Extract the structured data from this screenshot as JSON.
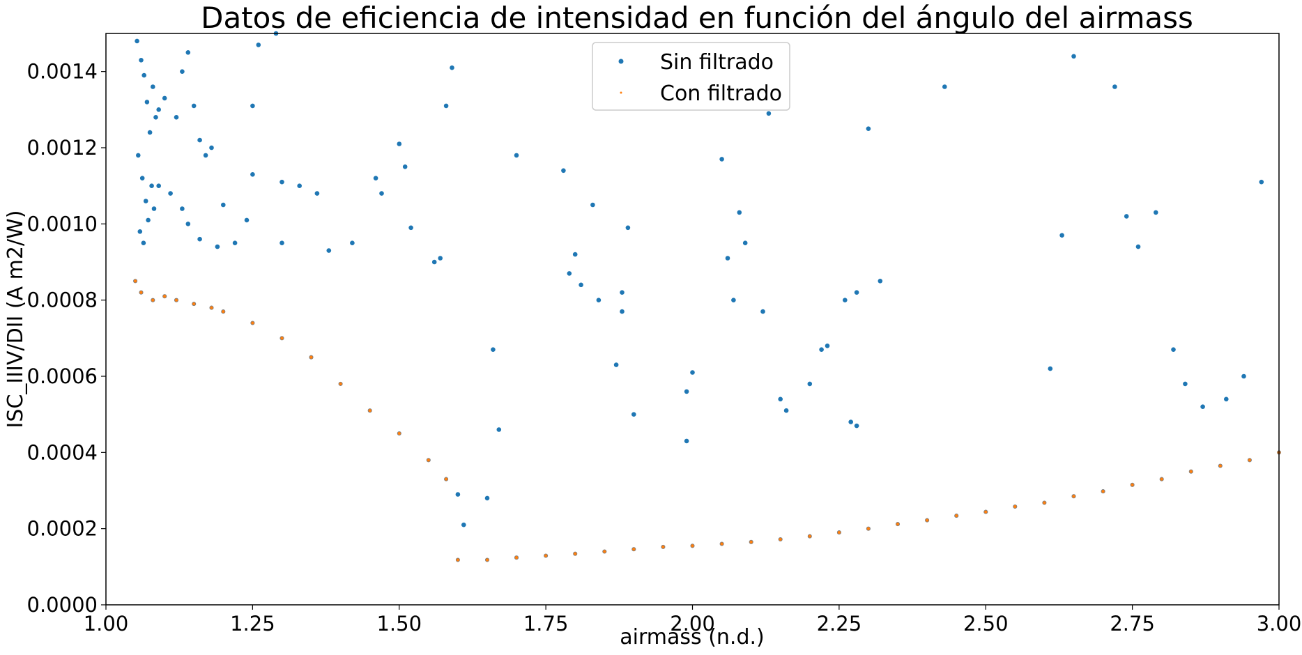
{
  "chart_data": {
    "type": "scatter",
    "title": "Datos de eficiencia de intensidad en función del ángulo del airmass",
    "xlabel": "airmass (n.d.)",
    "ylabel": "ISC_IIIV/DII (A m2/W)",
    "xlim": [
      1.0,
      3.0
    ],
    "ylim": [
      0.0,
      0.0015
    ],
    "xticks": [
      1.0,
      1.25,
      1.5,
      1.75,
      2.0,
      2.25,
      2.5,
      2.75,
      3.0
    ],
    "xtick_labels": [
      "1.00",
      "1.25",
      "1.50",
      "1.75",
      "2.00",
      "2.25",
      "2.50",
      "2.75",
      "3.00"
    ],
    "yticks": [
      0.0,
      0.0002,
      0.0004,
      0.0006,
      0.0008,
      0.001,
      0.0012,
      0.0014
    ],
    "ytick_labels": [
      "0.0000",
      "0.0002",
      "0.0004",
      "0.0006",
      "0.0008",
      "0.0010",
      "0.0012",
      "0.0014"
    ],
    "grid": false,
    "legend_position": "top-center",
    "series": [
      {
        "name": "Sin filtrado",
        "color": "#1f77b4",
        "points": [
          [
            1.053,
            0.00148
          ],
          [
            1.06,
            0.00143
          ],
          [
            1.065,
            0.00139
          ],
          [
            1.07,
            0.00132
          ],
          [
            1.075,
            0.00124
          ],
          [
            1.08,
            0.00136
          ],
          [
            1.085,
            0.00128
          ],
          [
            1.09,
            0.0013
          ],
          [
            1.1,
            0.00133
          ],
          [
            1.055,
            0.00118
          ],
          [
            1.062,
            0.00112
          ],
          [
            1.068,
            0.00106
          ],
          [
            1.072,
            0.00101
          ],
          [
            1.058,
            0.00098
          ],
          [
            1.064,
            0.00095
          ],
          [
            1.078,
            0.0011
          ],
          [
            1.082,
            0.00104
          ],
          [
            1.09,
            0.0011
          ],
          [
            1.12,
            0.00128
          ],
          [
            1.13,
            0.0014
          ],
          [
            1.14,
            0.00145
          ],
          [
            1.15,
            0.00131
          ],
          [
            1.16,
            0.00122
          ],
          [
            1.17,
            0.00118
          ],
          [
            1.18,
            0.0012
          ],
          [
            1.11,
            0.00108
          ],
          [
            1.13,
            0.00104
          ],
          [
            1.14,
            0.001
          ],
          [
            1.16,
            0.00096
          ],
          [
            1.19,
            0.00094
          ],
          [
            1.2,
            0.00105
          ],
          [
            1.22,
            0.00095
          ],
          [
            1.24,
            0.00101
          ],
          [
            1.25,
            0.00113
          ],
          [
            1.25,
            0.00131
          ],
          [
            1.26,
            0.00147
          ],
          [
            1.29,
            0.0015
          ],
          [
            1.3,
            0.00111
          ],
          [
            1.3,
            0.00095
          ],
          [
            1.33,
            0.0011
          ],
          [
            1.36,
            0.00108
          ],
          [
            1.38,
            0.00093
          ],
          [
            1.42,
            0.00095
          ],
          [
            1.46,
            0.00112
          ],
          [
            1.47,
            0.00108
          ],
          [
            1.5,
            0.00121
          ],
          [
            1.51,
            0.00115
          ],
          [
            1.52,
            0.00099
          ],
          [
            1.58,
            0.00131
          ],
          [
            1.59,
            0.00141
          ],
          [
            1.56,
            0.0009
          ],
          [
            1.57,
            0.00091
          ],
          [
            1.7,
            0.00118
          ],
          [
            1.78,
            0.00114
          ],
          [
            1.79,
            0.00087
          ],
          [
            1.8,
            0.00092
          ],
          [
            1.81,
            0.00084
          ],
          [
            1.83,
            0.00105
          ],
          [
            1.84,
            0.0008
          ],
          [
            1.88,
            0.00082
          ],
          [
            1.88,
            0.00077
          ],
          [
            1.89,
            0.00099
          ],
          [
            1.87,
            0.00063
          ],
          [
            1.9,
            0.0005
          ],
          [
            2.05,
            0.00117
          ],
          [
            2.06,
            0.00091
          ],
          [
            2.07,
            0.0008
          ],
          [
            2.08,
            0.00103
          ],
          [
            2.09,
            0.00095
          ],
          [
            2.12,
            0.00077
          ],
          [
            2.13,
            0.00129
          ],
          [
            2.15,
            0.00054
          ],
          [
            2.16,
            0.00051
          ],
          [
            2.2,
            0.00058
          ],
          [
            2.22,
            0.00067
          ],
          [
            2.23,
            0.00068
          ],
          [
            2.26,
            0.0008
          ],
          [
            2.28,
            0.00082
          ],
          [
            2.3,
            0.00125
          ],
          [
            2.32,
            0.00085
          ],
          [
            2.27,
            0.00048
          ],
          [
            2.28,
            0.00047
          ],
          [
            2.43,
            0.00136
          ],
          [
            2.61,
            0.00062
          ],
          [
            2.63,
            0.00097
          ],
          [
            2.65,
            0.00144
          ],
          [
            2.72,
            0.00136
          ],
          [
            2.74,
            0.00102
          ],
          [
            2.76,
            0.00094
          ],
          [
            2.79,
            0.00103
          ],
          [
            2.82,
            0.00067
          ],
          [
            2.84,
            0.00058
          ],
          [
            2.87,
            0.00052
          ],
          [
            2.91,
            0.00054
          ],
          [
            2.94,
            0.0006
          ],
          [
            2.97,
            0.00111
          ],
          [
            1.99,
            0.00056
          ],
          [
            2.0,
            0.00061
          ],
          [
            1.99,
            0.00043
          ],
          [
            1.66,
            0.00067
          ],
          [
            1.67,
            0.00046
          ],
          [
            1.65,
            0.00028
          ],
          [
            1.6,
            0.00029
          ],
          [
            1.61,
            0.00021
          ]
        ]
      },
      {
        "name": "Con filtrado",
        "color": "#ff7f0e",
        "points": [
          [
            1.05,
            0.00085
          ],
          [
            1.06,
            0.00082
          ],
          [
            1.08,
            0.0008
          ],
          [
            1.1,
            0.00081
          ],
          [
            1.12,
            0.0008
          ],
          [
            1.15,
            0.00079
          ],
          [
            1.18,
            0.00078
          ],
          [
            1.2,
            0.00077
          ],
          [
            1.25,
            0.00074
          ],
          [
            1.3,
            0.0007
          ],
          [
            1.35,
            0.00065
          ],
          [
            1.4,
            0.00058
          ],
          [
            1.45,
            0.00051
          ],
          [
            1.5,
            0.00045
          ],
          [
            1.55,
            0.00038
          ],
          [
            1.58,
            0.00033
          ],
          [
            1.6,
            0.000118
          ],
          [
            1.65,
            0.000118
          ],
          [
            1.7,
            0.000124
          ],
          [
            1.75,
            0.000129
          ],
          [
            1.8,
            0.000134
          ],
          [
            1.85,
            0.00014
          ],
          [
            1.9,
            0.000146
          ],
          [
            1.95,
            0.000152
          ],
          [
            2.0,
            0.000155
          ],
          [
            2.05,
            0.00016
          ],
          [
            2.1,
            0.000165
          ],
          [
            2.15,
            0.000172
          ],
          [
            2.2,
            0.00018
          ],
          [
            2.25,
            0.00019
          ],
          [
            2.3,
            0.0002
          ],
          [
            2.35,
            0.000212
          ],
          [
            2.4,
            0.000222
          ],
          [
            2.45,
            0.000234
          ],
          [
            2.5,
            0.000244
          ],
          [
            2.55,
            0.000258
          ],
          [
            2.6,
            0.000268
          ],
          [
            2.65,
            0.000285
          ],
          [
            2.7,
            0.000298
          ],
          [
            2.75,
            0.000315
          ],
          [
            2.8,
            0.00033
          ],
          [
            2.85,
            0.00035
          ],
          [
            2.9,
            0.000365
          ],
          [
            2.95,
            0.00038
          ],
          [
            3.0,
            0.0004
          ]
        ]
      }
    ]
  }
}
